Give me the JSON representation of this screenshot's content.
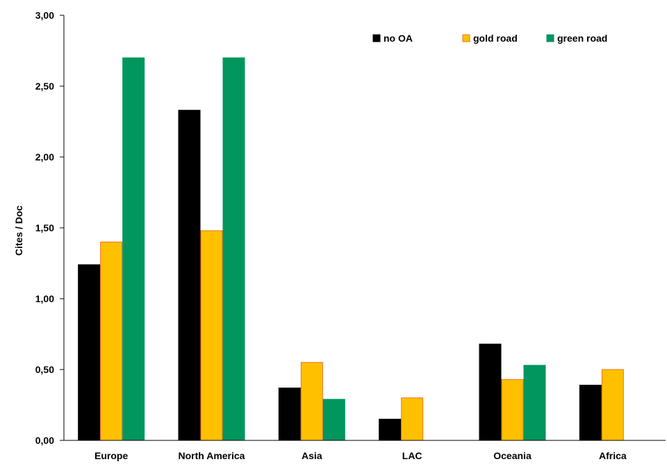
{
  "chart_data": {
    "type": "bar",
    "title": "",
    "xlabel": "",
    "ylabel": "Cites / Doc",
    "ylim": [
      0,
      3
    ],
    "yticks": [
      "0,00",
      "0,50",
      "1,00",
      "1,50",
      "2,00",
      "2,50",
      "3,00"
    ],
    "grid": false,
    "legend_position": "top-right",
    "categories": [
      "Europe",
      "North America",
      "Asia",
      "LAC",
      "Oceania",
      "Africa"
    ],
    "series": [
      {
        "name": "no OA",
        "color": "#000000",
        "edge": "#000000",
        "values": [
          1.24,
          2.33,
          0.37,
          0.15,
          0.68,
          0.39
        ]
      },
      {
        "name": "gold road",
        "color": "#ffc000",
        "edge": "#f07020",
        "values": [
          1.4,
          1.48,
          0.55,
          0.3,
          0.43,
          0.5
        ]
      },
      {
        "name": "green road",
        "color": "#00965e",
        "edge": "#00965e",
        "values": [
          2.7,
          2.7,
          0.29,
          null,
          0.53,
          null
        ]
      }
    ]
  }
}
